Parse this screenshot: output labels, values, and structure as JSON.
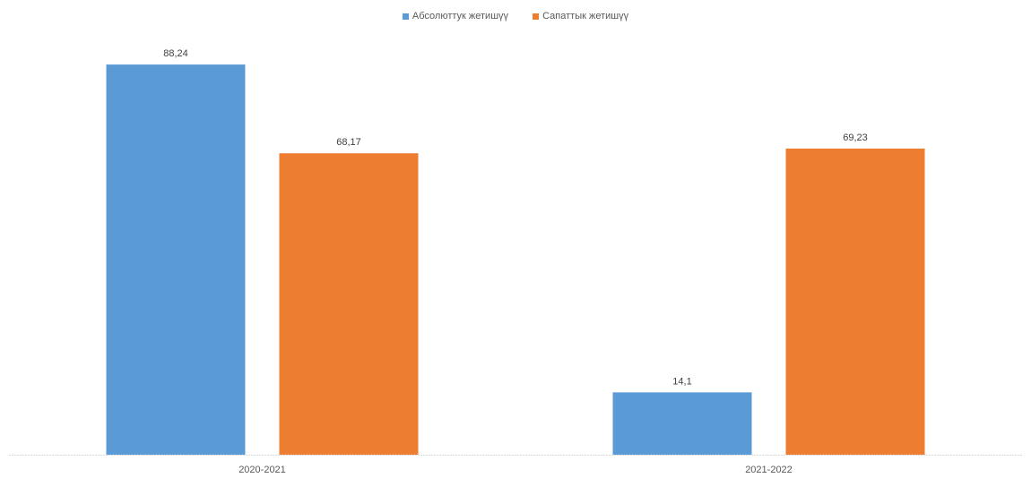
{
  "chart_data": {
    "type": "bar",
    "categories": [
      "2020-2021",
      "2021-2022"
    ],
    "series": [
      {
        "name": "Абсолюттук жетишүү",
        "color": "#5b9bd5",
        "values": [
          88.24,
          14.1
        ],
        "labels": [
          "88,24",
          "14,1"
        ]
      },
      {
        "name": "Сапаттык жетишүү",
        "color": "#ed7d31",
        "values": [
          68.17,
          69.23
        ],
        "labels": [
          "68,17",
          "69,23"
        ]
      }
    ],
    "ylim": [
      0,
      100
    ],
    "grid": false,
    "legend_position": "top"
  }
}
